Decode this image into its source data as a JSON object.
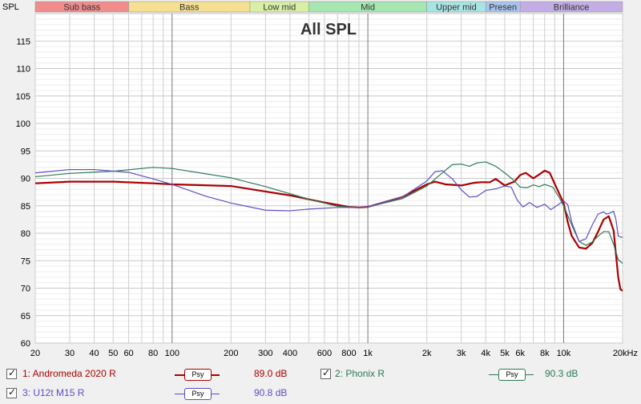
{
  "chart_data": {
    "type": "line",
    "title": "All SPL",
    "ylabel": "SPL",
    "xscale": "log",
    "xlim": [
      20,
      20000
    ],
    "ylim": [
      60,
      120
    ],
    "yticks": [
      "60",
      "65",
      "70",
      "75",
      "80",
      "85",
      "90",
      "95",
      "100",
      "105",
      "110",
      "115"
    ],
    "xticks": [
      {
        "f": 20,
        "label": "20"
      },
      {
        "f": 30,
        "label": "30"
      },
      {
        "f": 40,
        "label": "40"
      },
      {
        "f": 50,
        "label": "50"
      },
      {
        "f": 60,
        "label": "60"
      },
      {
        "f": 80,
        "label": "80"
      },
      {
        "f": 100,
        "label": "100"
      },
      {
        "f": 200,
        "label": "200"
      },
      {
        "f": 300,
        "label": "300"
      },
      {
        "f": 400,
        "label": "400"
      },
      {
        "f": 600,
        "label": "600"
      },
      {
        "f": 800,
        "label": "800"
      },
      {
        "f": 1000,
        "label": "1k"
      },
      {
        "f": 2000,
        "label": "2k"
      },
      {
        "f": 3000,
        "label": "3k"
      },
      {
        "f": 4000,
        "label": "4k"
      },
      {
        "f": 5000,
        "label": "5k"
      },
      {
        "f": 6000,
        "label": "6k"
      },
      {
        "f": 8000,
        "label": "8k"
      },
      {
        "f": 10000,
        "label": "10k"
      },
      {
        "f": 20000,
        "label": "20kHz"
      }
    ],
    "bands": [
      {
        "name": "Sub bass",
        "from": 20,
        "to": 60,
        "color": "#f08c8c"
      },
      {
        "name": "Bass",
        "from": 60,
        "to": 250,
        "color": "#f5df90"
      },
      {
        "name": "Low mid",
        "from": 250,
        "to": 500,
        "color": "#d8f0a6"
      },
      {
        "name": "Mid",
        "from": 500,
        "to": 2000,
        "color": "#a6e6b0"
      },
      {
        "name": "Upper mid",
        "from": 2000,
        "to": 4000,
        "color": "#a8e4e4"
      },
      {
        "name": "Presen",
        "from": 4000,
        "to": 6000,
        "color": "#a8c4ec"
      },
      {
        "name": "Brilliance",
        "from": 6000,
        "to": 20000,
        "color": "#c2aee4"
      }
    ],
    "series": [
      {
        "name": "1: Andromeda 2020 R",
        "color": "#aa0000",
        "width": 2.2,
        "level": "89.0 dB",
        "points": [
          [
            20,
            89.1
          ],
          [
            30,
            89.4
          ],
          [
            50,
            89.4
          ],
          [
            80,
            89.1
          ],
          [
            100,
            88.9
          ],
          [
            200,
            88.6
          ],
          [
            300,
            87.6
          ],
          [
            400,
            86.9
          ],
          [
            600,
            85.6
          ],
          [
            800,
            84.8
          ],
          [
            900,
            84.7
          ],
          [
            1000,
            84.8
          ],
          [
            1500,
            86.6
          ],
          [
            2000,
            88.9
          ],
          [
            2200,
            89.4
          ],
          [
            2500,
            88.9
          ],
          [
            3000,
            88.7
          ],
          [
            3500,
            89.2
          ],
          [
            3800,
            89.3
          ],
          [
            4200,
            89.3
          ],
          [
            4500,
            89.9
          ],
          [
            5000,
            88.7
          ],
          [
            5600,
            89.4
          ],
          [
            6000,
            90.6
          ],
          [
            6400,
            91.0
          ],
          [
            7000,
            90.0
          ],
          [
            7500,
            90.7
          ],
          [
            8000,
            91.4
          ],
          [
            8500,
            91.0
          ],
          [
            9000,
            89.0
          ],
          [
            10000,
            85.5
          ],
          [
            10500,
            82.0
          ],
          [
            11000,
            79.5
          ],
          [
            12000,
            77.4
          ],
          [
            13000,
            77.2
          ],
          [
            14000,
            78.2
          ],
          [
            15000,
            80.3
          ],
          [
            16000,
            82.5
          ],
          [
            17000,
            83.1
          ],
          [
            18000,
            80.5
          ],
          [
            19000,
            72.0
          ],
          [
            19500,
            69.8
          ],
          [
            20000,
            69.5
          ]
        ]
      },
      {
        "name": "2: Phonix R",
        "color": "#2b7a55",
        "width": 1.2,
        "level": "90.3 dB",
        "points": [
          [
            20,
            90.3
          ],
          [
            30,
            90.9
          ],
          [
            50,
            91.3
          ],
          [
            70,
            91.8
          ],
          [
            80,
            92.0
          ],
          [
            100,
            91.8
          ],
          [
            200,
            90.1
          ],
          [
            300,
            88.5
          ],
          [
            500,
            86.2
          ],
          [
            700,
            84.9
          ],
          [
            900,
            84.7
          ],
          [
            1000,
            84.8
          ],
          [
            1500,
            86.3
          ],
          [
            2000,
            88.6
          ],
          [
            2400,
            91.0
          ],
          [
            2700,
            92.5
          ],
          [
            3000,
            92.6
          ],
          [
            3300,
            92.2
          ],
          [
            3600,
            92.8
          ],
          [
            4000,
            93.0
          ],
          [
            4500,
            92.2
          ],
          [
            5000,
            91.0
          ],
          [
            5500,
            89.8
          ],
          [
            6000,
            88.4
          ],
          [
            6500,
            88.3
          ],
          [
            7000,
            88.8
          ],
          [
            7500,
            88.5
          ],
          [
            8000,
            88.9
          ],
          [
            8800,
            88.4
          ],
          [
            9500,
            86.5
          ],
          [
            10000,
            85.0
          ],
          [
            11000,
            81.5
          ],
          [
            12000,
            78.5
          ],
          [
            13000,
            77.8
          ],
          [
            14000,
            78.4
          ],
          [
            15000,
            79.5
          ],
          [
            16000,
            80.3
          ],
          [
            17000,
            80.3
          ],
          [
            18000,
            78.0
          ],
          [
            19000,
            75.2
          ],
          [
            20000,
            74.5
          ]
        ]
      },
      {
        "name": "3: U12t M15 R",
        "color": "#5a50c0",
        "width": 1.2,
        "level": "90.8 dB",
        "points": [
          [
            20,
            91.0
          ],
          [
            30,
            91.6
          ],
          [
            40,
            91.6
          ],
          [
            60,
            91.1
          ],
          [
            80,
            89.9
          ],
          [
            100,
            88.9
          ],
          [
            150,
            86.7
          ],
          [
            200,
            85.5
          ],
          [
            300,
            84.2
          ],
          [
            400,
            84.1
          ],
          [
            500,
            84.4
          ],
          [
            700,
            84.7
          ],
          [
            900,
            84.7
          ],
          [
            1000,
            84.8
          ],
          [
            1500,
            86.6
          ],
          [
            2000,
            89.5
          ],
          [
            2200,
            91.2
          ],
          [
            2400,
            91.4
          ],
          [
            2700,
            89.9
          ],
          [
            3000,
            87.9
          ],
          [
            3300,
            86.6
          ],
          [
            3600,
            86.7
          ],
          [
            4000,
            87.8
          ],
          [
            4500,
            88.1
          ],
          [
            5000,
            88.6
          ],
          [
            5400,
            88.4
          ],
          [
            5800,
            86.0
          ],
          [
            6200,
            84.8
          ],
          [
            6700,
            85.6
          ],
          [
            7300,
            84.7
          ],
          [
            8000,
            85.3
          ],
          [
            8600,
            84.3
          ],
          [
            9200,
            85.0
          ],
          [
            10000,
            85.9
          ],
          [
            10500,
            85.2
          ],
          [
            11000,
            82.0
          ],
          [
            12000,
            78.5
          ],
          [
            13000,
            79.0
          ],
          [
            14000,
            81.5
          ],
          [
            15000,
            83.5
          ],
          [
            16000,
            83.9
          ],
          [
            16500,
            83.5
          ],
          [
            17000,
            83.6
          ],
          [
            18000,
            84.0
          ],
          [
            18500,
            82.5
          ],
          [
            19000,
            79.5
          ],
          [
            20000,
            79.2
          ]
        ]
      }
    ]
  },
  "legend": [
    {
      "check": "✓",
      "name": "1: Andromeda 2020 R",
      "psy": "Psy",
      "value": "89.0 dB",
      "color": "#aa0000"
    },
    {
      "check": "✓",
      "name": "2: Phonix R",
      "psy": "Psy",
      "value": "90.3 dB",
      "color": "#2b7a55"
    },
    {
      "check": "✓",
      "name": "3: U12t M15 R",
      "psy": "Psy",
      "value": "90.8 dB",
      "color": "#5a50c0"
    }
  ]
}
